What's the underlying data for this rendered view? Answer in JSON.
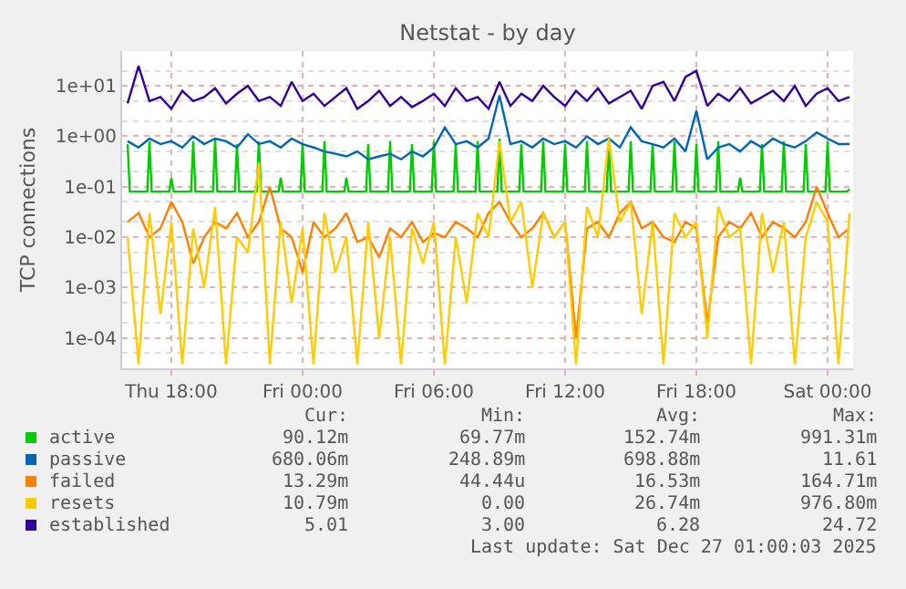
{
  "chart_data": {
    "type": "line",
    "title": "Netstat - by day",
    "ylabel": "TCP connections",
    "log": "y",
    "grid": true,
    "legend": "bottom",
    "xlim": [
      "2025-12-25T15:45",
      "2025-12-27T01:10"
    ],
    "xticks": [
      {
        "value": "2025-12-25T18:00",
        "label": "Thu 18:00"
      },
      {
        "value": "2025-12-26T00:00",
        "label": "Fri 00:00"
      },
      {
        "value": "2025-12-26T06:00",
        "label": "Fri 06:00"
      },
      {
        "value": "2025-12-26T12:00",
        "label": "Fri 12:00"
      },
      {
        "value": "2025-12-26T18:00",
        "label": "Fri 18:00"
      },
      {
        "value": "2025-12-27T00:00",
        "label": "Sat 00:00"
      }
    ],
    "ylim": [
      2.5e-05,
      49
    ],
    "yticks": [
      {
        "value": 0.0001,
        "label": "1e-04"
      },
      {
        "value": 0.001,
        "label": "1e-03"
      },
      {
        "value": 0.01,
        "label": "1e-02"
      },
      {
        "value": 0.1,
        "label": "1e-01"
      },
      {
        "value": 1,
        "label": "1e+00"
      },
      {
        "value": 10,
        "label": "1e+01"
      }
    ],
    "x": [
      "2025-12-25T16:00",
      "2025-12-25T16:30",
      "2025-12-25T17:00",
      "2025-12-25T17:30",
      "2025-12-25T18:00",
      "2025-12-25T18:30",
      "2025-12-25T19:00",
      "2025-12-25T19:30",
      "2025-12-25T20:00",
      "2025-12-25T20:30",
      "2025-12-25T21:00",
      "2025-12-25T21:30",
      "2025-12-25T22:00",
      "2025-12-25T22:30",
      "2025-12-25T23:00",
      "2025-12-25T23:30",
      "2025-12-26T00:00",
      "2025-12-26T00:30",
      "2025-12-26T01:00",
      "2025-12-26T01:30",
      "2025-12-26T02:00",
      "2025-12-26T02:30",
      "2025-12-26T03:00",
      "2025-12-26T03:30",
      "2025-12-26T04:00",
      "2025-12-26T04:30",
      "2025-12-26T05:00",
      "2025-12-26T05:30",
      "2025-12-26T06:00",
      "2025-12-26T06:30",
      "2025-12-26T07:00",
      "2025-12-26T07:30",
      "2025-12-26T08:00",
      "2025-12-26T08:30",
      "2025-12-26T09:00",
      "2025-12-26T09:30",
      "2025-12-26T10:00",
      "2025-12-26T10:30",
      "2025-12-26T11:00",
      "2025-12-26T11:30",
      "2025-12-26T12:00",
      "2025-12-26T12:30",
      "2025-12-26T13:00",
      "2025-12-26T13:30",
      "2025-12-26T14:00",
      "2025-12-26T14:30",
      "2025-12-26T15:00",
      "2025-12-26T15:30",
      "2025-12-26T16:00",
      "2025-12-26T16:30",
      "2025-12-26T17:00",
      "2025-12-26T17:30",
      "2025-12-26T18:00",
      "2025-12-26T18:30",
      "2025-12-26T19:00",
      "2025-12-26T19:30",
      "2025-12-26T20:00",
      "2025-12-26T20:30",
      "2025-12-26T21:00",
      "2025-12-26T21:30",
      "2025-12-26T22:00",
      "2025-12-26T22:30",
      "2025-12-26T23:00",
      "2025-12-26T23:30",
      "2025-12-27T00:00",
      "2025-12-27T00:30",
      "2025-12-27T01:00"
    ],
    "series": [
      {
        "name": "active",
        "color": "#00cc00",
        "x": [
          "2025-12-25T16:00",
          "2025-12-25T16:06",
          "2025-12-25T16:54",
          "2025-12-25T17:00",
          "2025-12-25T17:06",
          "2025-12-25T17:54",
          "2025-12-25T18:00",
          "2025-12-25T18:06",
          "2025-12-25T18:54",
          "2025-12-25T19:00",
          "2025-12-25T19:06",
          "2025-12-25T19:54",
          "2025-12-25T20:00",
          "2025-12-25T20:06",
          "2025-12-25T20:54",
          "2025-12-25T21:00",
          "2025-12-25T21:06",
          "2025-12-25T21:54",
          "2025-12-25T22:00",
          "2025-12-25T22:06",
          "2025-12-25T22:54",
          "2025-12-25T23:00",
          "2025-12-25T23:06",
          "2025-12-25T23:54",
          "2025-12-26T00:00",
          "2025-12-26T00:06",
          "2025-12-26T00:54",
          "2025-12-26T01:00",
          "2025-12-26T01:06",
          "2025-12-26T01:54",
          "2025-12-26T02:00",
          "2025-12-26T02:06",
          "2025-12-26T02:54",
          "2025-12-26T03:00",
          "2025-12-26T03:06",
          "2025-12-26T03:54",
          "2025-12-26T04:00",
          "2025-12-26T04:06",
          "2025-12-26T04:54",
          "2025-12-26T05:00",
          "2025-12-26T05:06",
          "2025-12-26T05:54",
          "2025-12-26T06:00",
          "2025-12-26T06:06",
          "2025-12-26T06:54",
          "2025-12-26T07:00",
          "2025-12-26T07:06",
          "2025-12-26T07:54",
          "2025-12-26T08:00",
          "2025-12-26T08:06",
          "2025-12-26T08:54",
          "2025-12-26T09:00",
          "2025-12-26T09:06",
          "2025-12-26T09:54",
          "2025-12-26T10:00",
          "2025-12-26T10:06",
          "2025-12-26T10:54",
          "2025-12-26T11:00",
          "2025-12-26T11:06",
          "2025-12-26T11:54",
          "2025-12-26T12:00",
          "2025-12-26T12:06",
          "2025-12-26T12:54",
          "2025-12-26T13:00",
          "2025-12-26T13:06",
          "2025-12-26T13:54",
          "2025-12-26T14:00",
          "2025-12-26T14:06",
          "2025-12-26T14:54",
          "2025-12-26T15:00",
          "2025-12-26T15:06",
          "2025-12-26T15:54",
          "2025-12-26T16:00",
          "2025-12-26T16:06",
          "2025-12-26T16:54",
          "2025-12-26T17:00",
          "2025-12-26T17:06",
          "2025-12-26T17:54",
          "2025-12-26T18:00",
          "2025-12-26T18:06",
          "2025-12-26T18:54",
          "2025-12-26T19:00",
          "2025-12-26T19:06",
          "2025-12-26T19:54",
          "2025-12-26T20:00",
          "2025-12-26T20:06",
          "2025-12-26T20:54",
          "2025-12-26T21:00",
          "2025-12-26T21:06",
          "2025-12-26T21:54",
          "2025-12-26T22:00",
          "2025-12-26T22:06",
          "2025-12-26T22:54",
          "2025-12-26T23:00",
          "2025-12-26T23:06",
          "2025-12-26T23:54",
          "2025-12-27T00:00",
          "2025-12-27T00:06",
          "2025-12-27T00:54",
          "2025-12-27T01:00"
        ],
        "values": [
          0.7,
          0.08,
          0.08,
          0.8,
          0.08,
          0.08,
          0.15,
          0.08,
          0.08,
          0.8,
          0.08,
          0.08,
          0.9,
          0.08,
          0.08,
          0.7,
          0.08,
          0.08,
          0.8,
          0.08,
          0.08,
          0.15,
          0.08,
          0.08,
          0.7,
          0.08,
          0.08,
          0.8,
          0.08,
          0.08,
          0.15,
          0.08,
          0.08,
          0.7,
          0.08,
          0.08,
          0.8,
          0.08,
          0.08,
          0.7,
          0.08,
          0.08,
          0.8,
          0.08,
          0.08,
          0.7,
          0.08,
          0.08,
          0.8,
          0.08,
          0.08,
          0.9,
          0.08,
          0.08,
          0.7,
          0.08,
          0.08,
          0.8,
          0.08,
          0.08,
          0.7,
          0.08,
          0.08,
          0.8,
          0.08,
          0.08,
          0.7,
          0.08,
          0.08,
          0.8,
          0.08,
          0.08,
          0.7,
          0.08,
          0.08,
          0.8,
          0.08,
          0.08,
          0.7,
          0.08,
          0.08,
          0.8,
          0.08,
          0.08,
          0.15,
          0.08,
          0.08,
          0.7,
          0.08,
          0.08,
          0.8,
          0.08,
          0.08,
          0.7,
          0.08,
          0.08,
          0.8,
          0.08,
          0.08,
          0.09
        ]
      },
      {
        "name": "passive",
        "color": "#0066b3",
        "values": [
          0.8,
          0.6,
          0.9,
          0.7,
          0.8,
          0.6,
          1.0,
          0.7,
          0.9,
          0.8,
          0.6,
          1.1,
          0.7,
          0.8,
          0.6,
          0.9,
          0.7,
          0.6,
          0.5,
          0.45,
          0.4,
          0.5,
          0.35,
          0.4,
          0.45,
          0.35,
          0.5,
          0.4,
          0.6,
          1.5,
          0.7,
          0.8,
          0.6,
          0.9,
          6.5,
          0.7,
          0.8,
          0.6,
          0.9,
          0.7,
          0.8,
          0.6,
          1.0,
          0.7,
          0.9,
          0.6,
          1.5,
          0.8,
          0.7,
          0.6,
          0.9,
          0.5,
          3.2,
          0.35,
          0.6,
          0.7,
          0.5,
          0.8,
          0.6,
          0.9,
          0.7,
          0.6,
          0.8,
          1.2,
          0.9,
          0.7,
          0.7
        ]
      },
      {
        "name": "failed",
        "color": "#ff8000",
        "values": [
          0.02,
          0.03,
          0.01,
          0.015,
          0.05,
          0.02,
          0.003,
          0.01,
          0.02,
          0.015,
          0.03,
          0.01,
          0.02,
          0.1,
          0.015,
          0.01,
          0.002,
          0.02,
          0.01,
          0.015,
          0.03,
          0.008,
          0.01,
          0.004,
          0.015,
          0.01,
          0.02,
          0.008,
          0.012,
          0.01,
          0.02,
          0.015,
          0.01,
          0.03,
          0.05,
          0.02,
          0.01,
          0.015,
          0.03,
          0.01,
          0.02,
          0.0001,
          0.015,
          0.02,
          0.01,
          0.03,
          0.05,
          0.015,
          0.02,
          0.01,
          0.008,
          0.02,
          0.015,
          0.0002,
          0.01,
          0.02,
          0.015,
          0.03,
          0.01,
          0.02,
          0.015,
          0.01,
          0.02,
          0.1,
          0.03,
          0.01,
          0.015
        ]
      },
      {
        "name": "resets",
        "color": "#ffcc00",
        "values": [
          0.01,
          3e-05,
          0.03,
          0.0003,
          0.02,
          3e-05,
          0.015,
          0.001,
          0.04,
          3e-05,
          0.01,
          0.005,
          0.3,
          3e-05,
          0.02,
          0.0005,
          0.015,
          3e-05,
          0.03,
          0.002,
          0.01,
          3e-05,
          0.02,
          0.0001,
          0.01,
          3e-05,
          0.015,
          0.003,
          0.02,
          3e-05,
          0.01,
          0.0005,
          0.03,
          0.01,
          0.8,
          0.02,
          0.05,
          0.001,
          0.03,
          0.01,
          0.02,
          3e-05,
          0.04,
          0.01,
          0.9,
          0.02,
          0.05,
          0.0003,
          0.02,
          3e-05,
          0.03,
          0.01,
          0.02,
          0.0001,
          0.04,
          0.01,
          0.015,
          3e-05,
          0.03,
          0.002,
          0.02,
          3e-05,
          0.01,
          0.05,
          0.02,
          3e-05,
          0.03
        ]
      },
      {
        "name": "established",
        "color": "#330099",
        "values": [
          4.5,
          24.7,
          5,
          6,
          3.5,
          8,
          5,
          6,
          9,
          4.5,
          7,
          10,
          5,
          6,
          4,
          12,
          5,
          7,
          4,
          6,
          9,
          3.5,
          5,
          8,
          4,
          6,
          3.8,
          5,
          7,
          4,
          9,
          5,
          6,
          3.5,
          12,
          4,
          7,
          5,
          10,
          6,
          4,
          8,
          5,
          9,
          4.5,
          6,
          8,
          3.5,
          10,
          12,
          5,
          15,
          20,
          4,
          7,
          5,
          9,
          4.5,
          6,
          8,
          5,
          10,
          4,
          7,
          9,
          5,
          6
        ]
      }
    ],
    "annotations": [
      "Cur:",
      "Min:",
      "Avg:",
      "Max:",
      "90.12m",
      "69.77m",
      "152.74m",
      "991.31m",
      "680.06m",
      "248.89m",
      "698.88m",
      "11.61",
      "13.29m",
      "44.44u",
      "16.53m",
      "164.71m",
      "10.79m",
      "0.00",
      "26.74m",
      "976.80m",
      "5.01",
      "3.00",
      "6.28",
      "24.72",
      "Last update: Sat Dec 27 01:00:03 2025"
    ]
  }
}
